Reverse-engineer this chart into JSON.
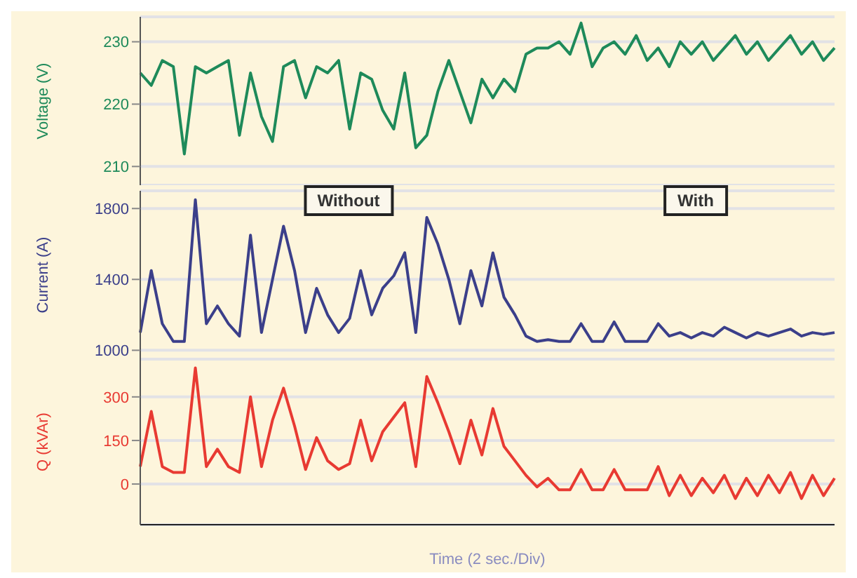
{
  "chart_data": [
    {
      "type": "line",
      "ylabel": "Voltage (V)",
      "categories": [
        null,
        null,
        null,
        null,
        null,
        null,
        null,
        null,
        null,
        null,
        null,
        null,
        null,
        null,
        null,
        null,
        null,
        null,
        null,
        null,
        null,
        null,
        null,
        null,
        null,
        null,
        null,
        null,
        null,
        null,
        null,
        null,
        null,
        null,
        null,
        null,
        null,
        null,
        null,
        null,
        null,
        null,
        null,
        null,
        null,
        null,
        null,
        null,
        null,
        null,
        null,
        null,
        null,
        null,
        null,
        null,
        null,
        null,
        null,
        null,
        null,
        null,
        null,
        null
      ],
      "ylim": [
        207,
        234
      ],
      "yticks": [
        210,
        220,
        230
      ],
      "grid": "y",
      "tick_labels": "y",
      "series": [
        {
          "color": "#1e8a5a",
          "values": [
            225,
            223,
            227,
            226,
            212,
            226,
            225,
            226,
            227,
            215,
            225,
            218,
            214,
            226,
            227,
            221,
            226,
            225,
            227,
            216,
            225,
            224,
            219,
            216,
            225,
            213,
            215,
            222,
            227,
            222,
            217,
            224,
            221,
            224,
            222,
            228,
            229,
            229,
            230,
            228,
            233,
            226,
            229,
            230,
            228,
            231,
            227,
            229,
            226,
            230,
            228,
            230,
            227,
            229,
            231,
            228,
            230,
            227,
            229,
            231,
            228,
            230,
            227,
            229
          ]
        }
      ]
    },
    {
      "type": "line",
      "ylabel": "Current (A)",
      "categories": [
        null,
        null,
        null,
        null,
        null,
        null,
        null,
        null,
        null,
        null,
        null,
        null,
        null,
        null,
        null,
        null,
        null,
        null,
        null,
        null,
        null,
        null,
        null,
        null,
        null,
        null,
        null,
        null,
        null,
        null,
        null,
        null,
        null,
        null,
        null,
        null,
        null,
        null,
        null,
        null,
        null,
        null,
        null,
        null,
        null,
        null,
        null,
        null,
        null,
        null,
        null,
        null,
        null,
        null,
        null,
        null,
        null,
        null,
        null,
        null,
        null,
        null,
        null,
        null
      ],
      "ylim": [
        950,
        1900
      ],
      "yticks": [
        1000,
        1400,
        1800
      ],
      "grid": "y",
      "tick_labels": "y",
      "annotations": [
        "Without",
        "With"
      ],
      "series": [
        {
          "color": "#3b3f8a",
          "values": [
            1100,
            1450,
            1150,
            1050,
            1050,
            1850,
            1150,
            1250,
            1150,
            1080,
            1650,
            1100,
            1400,
            1700,
            1450,
            1100,
            1350,
            1200,
            1100,
            1180,
            1450,
            1200,
            1350,
            1420,
            1550,
            1100,
            1750,
            1600,
            1400,
            1150,
            1450,
            1250,
            1550,
            1300,
            1200,
            1080,
            1050,
            1060,
            1050,
            1050,
            1150,
            1050,
            1050,
            1160,
            1050,
            1050,
            1050,
            1150,
            1080,
            1100,
            1070,
            1100,
            1080,
            1130,
            1100,
            1070,
            1100,
            1080,
            1100,
            1120,
            1080,
            1100,
            1090,
            1100
          ]
        }
      ]
    },
    {
      "type": "line",
      "ylabel": "Q (kVAr)",
      "xlabel": "Time (2 sec./Div)",
      "categories": [
        null,
        null,
        null,
        null,
        null,
        null,
        null,
        null,
        null,
        null,
        null,
        null,
        null,
        null,
        null,
        null,
        null,
        null,
        null,
        null,
        null,
        null,
        null,
        null,
        null,
        null,
        null,
        null,
        null,
        null,
        null,
        null,
        null,
        null,
        null,
        null,
        null,
        null,
        null,
        null,
        null,
        null,
        null,
        null,
        null,
        null,
        null,
        null,
        null,
        null,
        null,
        null,
        null,
        null,
        null,
        null,
        null,
        null,
        null,
        null,
        null,
        null,
        null,
        null
      ],
      "ylim": [
        -140,
        430
      ],
      "yticks": [
        0,
        150,
        300
      ],
      "grid": "y",
      "tick_labels": "y",
      "series": [
        {
          "color": "#e83a32",
          "values": [
            60,
            250,
            60,
            40,
            40,
            400,
            60,
            120,
            60,
            40,
            300,
            60,
            220,
            330,
            200,
            50,
            160,
            80,
            50,
            70,
            220,
            80,
            180,
            230,
            280,
            60,
            370,
            280,
            180,
            70,
            220,
            100,
            260,
            130,
            80,
            30,
            -10,
            20,
            -20,
            -20,
            50,
            -20,
            -20,
            50,
            -20,
            -20,
            -20,
            60,
            -40,
            30,
            -40,
            20,
            -30,
            30,
            -50,
            20,
            -40,
            30,
            -30,
            40,
            -50,
            30,
            -40,
            20
          ]
        }
      ]
    }
  ]
}
